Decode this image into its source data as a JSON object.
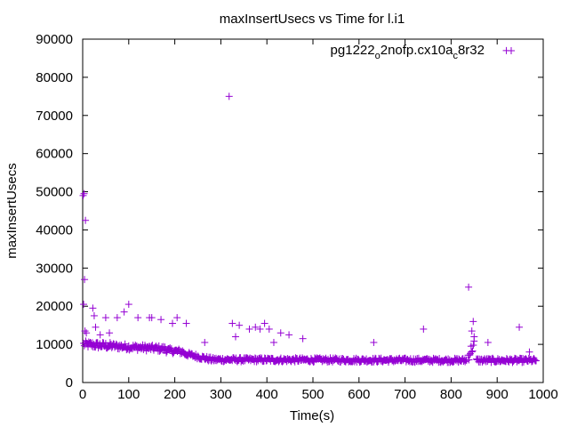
{
  "chart_data": {
    "type": "scatter",
    "title": "maxInsertUsecs vs Time for l.i1",
    "xlabel": "Time(s)",
    "ylabel": "maxInsertUsecs",
    "xlim": [
      0,
      1000
    ],
    "ylim": [
      0,
      90000
    ],
    "xticks": [
      "0",
      "100",
      "200",
      "300",
      "400",
      "500",
      "600",
      "700",
      "800",
      "900",
      "1000"
    ],
    "yticks": [
      "0",
      "10000",
      "20000",
      "30000",
      "40000",
      "50000",
      "60000",
      "70000",
      "80000",
      "90000"
    ],
    "grid": false,
    "legend_position": "top-right",
    "legend": {
      "main": "pg1222",
      "sub1": "o",
      "mid": "2nofp.cx10a",
      "sub2": "c",
      "tail": "8r32"
    },
    "series": [
      {
        "name": "pg1222_o2nofp.cx10a_c8r32",
        "color": "#9400d3",
        "marker": "plus",
        "outliers": [
          [
            1,
            49000
          ],
          [
            3,
            49500
          ],
          [
            4,
            27000
          ],
          [
            6,
            42500
          ],
          [
            2,
            20500
          ],
          [
            5,
            13500
          ],
          [
            8,
            13000
          ],
          [
            22,
            19500
          ],
          [
            25,
            17500
          ],
          [
            28,
            14500
          ],
          [
            38,
            12500
          ],
          [
            50,
            17000
          ],
          [
            58,
            13000
          ],
          [
            75,
            17000
          ],
          [
            90,
            18500
          ],
          [
            100,
            20500
          ],
          [
            120,
            17000
          ],
          [
            145,
            17000
          ],
          [
            150,
            17000
          ],
          [
            170,
            16500
          ],
          [
            195,
            15500
          ],
          [
            205,
            17000
          ],
          [
            225,
            15500
          ],
          [
            265,
            10500
          ],
          [
            318,
            75000
          ],
          [
            325,
            15500
          ],
          [
            332,
            12000
          ],
          [
            340,
            15000
          ],
          [
            362,
            14000
          ],
          [
            375,
            14500
          ],
          [
            385,
            14000
          ],
          [
            395,
            15500
          ],
          [
            405,
            14000
          ],
          [
            415,
            10500
          ],
          [
            430,
            13000
          ],
          [
            448,
            12500
          ],
          [
            478,
            11500
          ],
          [
            632,
            10500
          ],
          [
            740,
            14000
          ],
          [
            838,
            25000
          ],
          [
            845,
            13500
          ],
          [
            848,
            16000
          ],
          [
            850,
            12000
          ],
          [
            880,
            10500
          ],
          [
            920,
            87000
          ],
          [
            948,
            14500
          ],
          [
            970,
            8000
          ]
        ],
        "trend_segments": [
          {
            "x_start": 2,
            "x_end": 60,
            "y_start": 10000,
            "y_end": 9600,
            "spread": 900
          },
          {
            "x_start": 60,
            "x_end": 180,
            "y_start": 9600,
            "y_end": 8800,
            "spread": 800
          },
          {
            "x_start": 180,
            "x_end": 220,
            "y_start": 8500,
            "y_end": 8000,
            "spread": 700
          },
          {
            "x_start": 220,
            "x_end": 280,
            "y_start": 7600,
            "y_end": 6000,
            "spread": 600
          },
          {
            "x_start": 280,
            "x_end": 835,
            "y_start": 6000,
            "y_end": 5800,
            "spread": 550
          },
          {
            "x_start": 837,
            "x_end": 850,
            "y_start": 7000,
            "y_end": 10000,
            "spread": 1500
          },
          {
            "x_start": 855,
            "x_end": 985,
            "y_start": 5800,
            "y_end": 5800,
            "spread": 550
          }
        ]
      }
    ]
  }
}
